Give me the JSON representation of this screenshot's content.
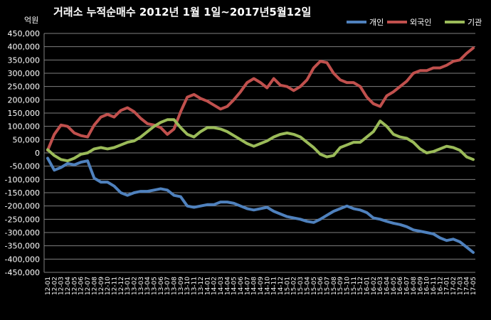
{
  "chart_data": {
    "type": "line",
    "title": "거래소 누적순매수 2012년 1월 1일~2017년5월12일",
    "ylabel": "억원",
    "ylim": [
      -450000,
      450000
    ],
    "ytick_step": 50000,
    "grid": true,
    "legend_position": "top-right",
    "categories": [
      "12-01",
      "12-02",
      "12-03",
      "12-04",
      "12-05",
      "12-06",
      "12-07",
      "12-08",
      "12-09",
      "12-10",
      "12-11",
      "12-12",
      "13-01",
      "13-02",
      "13-03",
      "13-04",
      "13-05",
      "13-06",
      "13-07",
      "13-08",
      "13-09",
      "13-10",
      "13-11",
      "13-12",
      "14-01",
      "14-02",
      "14-03",
      "14-04",
      "14-05",
      "14-06",
      "14-07",
      "14-08",
      "14-09",
      "14-10",
      "14-11",
      "14-12",
      "15-01",
      "15-02",
      "15-03",
      "15-04",
      "15-05",
      "15-06",
      "15-07",
      "15-08",
      "15-09",
      "15-10",
      "15-11",
      "15-12",
      "16-01",
      "16-02",
      "16-03",
      "16-04",
      "16-05",
      "16-06",
      "16-07",
      "16-08",
      "16-09",
      "16-10",
      "16-11",
      "16-12",
      "17-01",
      "17-02",
      "17-03",
      "17-04",
      "17-05"
    ],
    "series": [
      {
        "name": "개인",
        "color": "#4F81BD",
        "values": [
          -20000,
          -65000,
          -55000,
          -40000,
          -45000,
          -35000,
          -30000,
          -95000,
          -110000,
          -110000,
          -125000,
          -150000,
          -160000,
          -150000,
          -145000,
          -145000,
          -140000,
          -135000,
          -140000,
          -160000,
          -165000,
          -200000,
          -205000,
          -200000,
          -195000,
          -195000,
          -185000,
          -185000,
          -190000,
          -200000,
          -210000,
          -215000,
          -210000,
          -205000,
          -220000,
          -230000,
          -240000,
          -245000,
          -250000,
          -258000,
          -262000,
          -250000,
          -235000,
          -220000,
          -210000,
          -200000,
          -210000,
          -215000,
          -225000,
          -245000,
          -250000,
          -258000,
          -265000,
          -270000,
          -278000,
          -290000,
          -295000,
          -300000,
          -305000,
          -320000,
          -330000,
          -325000,
          -335000,
          -355000,
          -375000
        ]
      },
      {
        "name": "외국인",
        "color": "#C0504D",
        "values": [
          10000,
          70000,
          105000,
          100000,
          75000,
          65000,
          60000,
          105000,
          135000,
          145000,
          135000,
          160000,
          170000,
          155000,
          130000,
          110000,
          105000,
          95000,
          70000,
          90000,
          155000,
          210000,
          220000,
          205000,
          195000,
          180000,
          165000,
          175000,
          200000,
          230000,
          265000,
          280000,
          265000,
          245000,
          280000,
          255000,
          250000,
          235000,
          250000,
          275000,
          320000,
          345000,
          340000,
          300000,
          275000,
          265000,
          265000,
          250000,
          210000,
          185000,
          175000,
          215000,
          230000,
          250000,
          270000,
          300000,
          310000,
          310000,
          320000,
          320000,
          330000,
          345000,
          350000,
          375000,
          395000
        ]
      },
      {
        "name": "기관",
        "color": "#9BBB59",
        "values": [
          12000,
          -10000,
          -25000,
          -30000,
          -20000,
          -5000,
          0,
          15000,
          20000,
          15000,
          20000,
          30000,
          40000,
          45000,
          60000,
          80000,
          100000,
          115000,
          125000,
          125000,
          95000,
          70000,
          60000,
          80000,
          95000,
          95000,
          90000,
          80000,
          65000,
          50000,
          35000,
          25000,
          35000,
          45000,
          60000,
          70000,
          75000,
          70000,
          60000,
          40000,
          20000,
          -5000,
          -15000,
          -10000,
          20000,
          30000,
          40000,
          40000,
          60000,
          80000,
          120000,
          100000,
          70000,
          60000,
          55000,
          40000,
          15000,
          0,
          5000,
          15000,
          25000,
          20000,
          10000,
          -15000,
          -25000
        ]
      }
    ]
  }
}
